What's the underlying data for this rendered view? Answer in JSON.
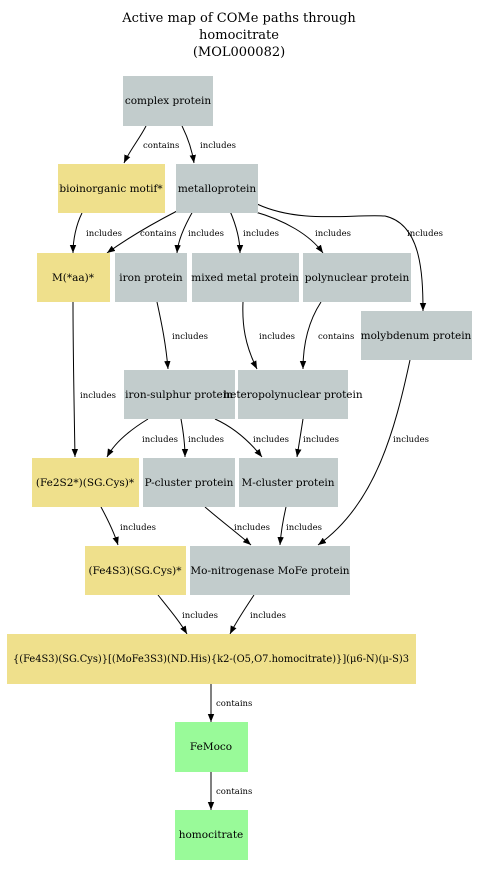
{
  "title": {
    "lines": [
      "Active map of COMe paths through",
      "homocitrate",
      "(MOL000082)"
    ]
  },
  "colors": {
    "protein_node": "#c2cccc",
    "motif_node": "#efe08c",
    "compound_node": "#99fa99",
    "edge": "#000000"
  },
  "nodes": [
    {
      "id": "complex_protein",
      "label": "complex protein",
      "kind": "protein_node"
    },
    {
      "id": "bioinorganic_motif",
      "label": "bioinorganic motif*",
      "kind": "motif_node"
    },
    {
      "id": "metalloprotein",
      "label": "metalloprotein",
      "kind": "protein_node"
    },
    {
      "id": "m_aa",
      "label": "M(*aa)*",
      "kind": "motif_node"
    },
    {
      "id": "iron_protein",
      "label": "iron protein",
      "kind": "protein_node"
    },
    {
      "id": "mixed_metal_protein",
      "label": "mixed metal protein",
      "kind": "protein_node"
    },
    {
      "id": "polynuclear_protein",
      "label": "polynuclear protein",
      "kind": "protein_node"
    },
    {
      "id": "molybdenum_protein",
      "label": "molybdenum protein",
      "kind": "protein_node"
    },
    {
      "id": "iron_sulphur_protein",
      "label": "iron-sulphur protein",
      "kind": "protein_node"
    },
    {
      "id": "heteropolynuclear_protein",
      "label": "heteropolynuclear protein",
      "kind": "protein_node"
    },
    {
      "id": "fe2s2",
      "label": "(Fe2S2*)(SG.Cys)*",
      "kind": "motif_node"
    },
    {
      "id": "p_cluster_protein",
      "label": "P-cluster protein",
      "kind": "protein_node"
    },
    {
      "id": "m_cluster_protein",
      "label": "M-cluster protein",
      "kind": "protein_node"
    },
    {
      "id": "fe4s3",
      "label": "(Fe4S3)(SG.Cys)*",
      "kind": "motif_node"
    },
    {
      "id": "mo_nitrogenase",
      "label": "Mo-nitrogenase MoFe protein",
      "kind": "protein_node"
    },
    {
      "id": "big_motif",
      "label": "{(Fe4S3)(SG.Cys)}[(MoFe3S3)(ND.His){k2-(O5,O7.homocitrate)}](μ6-N)(μ-S)3",
      "kind": "motif_node"
    },
    {
      "id": "femoco",
      "label": "FeMoco",
      "kind": "compound_node"
    },
    {
      "id": "homocitrate",
      "label": "homocitrate",
      "kind": "compound_node"
    }
  ],
  "edges": [
    {
      "id": "e1",
      "label": "contains"
    },
    {
      "id": "e2",
      "label": "includes"
    },
    {
      "id": "e3",
      "label": "includes"
    },
    {
      "id": "e4",
      "label": "contains"
    },
    {
      "id": "e5",
      "label": "includes"
    },
    {
      "id": "e6",
      "label": "includes"
    },
    {
      "id": "e7",
      "label": "includes"
    },
    {
      "id": "e8",
      "label": "includes"
    },
    {
      "id": "e9",
      "label": "includes"
    },
    {
      "id": "e10",
      "label": "includes"
    },
    {
      "id": "e11",
      "label": "includes"
    },
    {
      "id": "e12",
      "label": "contains"
    },
    {
      "id": "e13",
      "label": "includes"
    },
    {
      "id": "e14",
      "label": "includes"
    },
    {
      "id": "e15",
      "label": "includes"
    },
    {
      "id": "e16",
      "label": "includes"
    },
    {
      "id": "e17",
      "label": "includes"
    },
    {
      "id": "e18",
      "label": "includes"
    },
    {
      "id": "e19",
      "label": "includes"
    },
    {
      "id": "e20",
      "label": "includes"
    },
    {
      "id": "e21",
      "label": "includes"
    },
    {
      "id": "e22",
      "label": "includes"
    },
    {
      "id": "e23",
      "label": "contains"
    },
    {
      "id": "e24",
      "label": "contains"
    },
    {
      "id": "e25",
      "label": "contains"
    }
  ]
}
